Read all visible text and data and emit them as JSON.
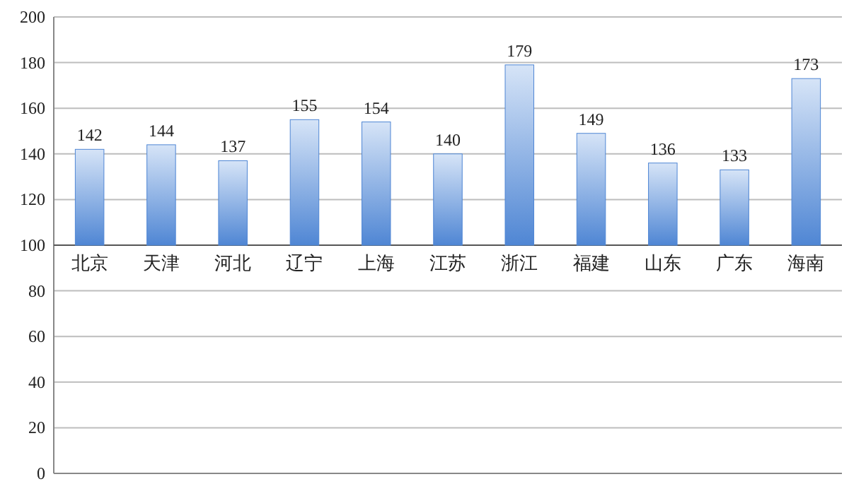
{
  "chart_data": {
    "type": "bar",
    "categories": [
      "北京",
      "天津",
      "河北",
      "辽宁",
      "上海",
      "江苏",
      "浙江",
      "福建",
      "山东",
      "广东",
      "海南"
    ],
    "base": [
      100,
      100,
      100,
      100,
      100,
      100,
      100,
      100,
      100,
      100,
      100
    ],
    "values": [
      42,
      44,
      37,
      55,
      54,
      40,
      79,
      49,
      36,
      33,
      73
    ],
    "value_labels": [
      "142",
      "144",
      "137",
      "155",
      "154",
      "140",
      "179",
      "149",
      "136",
      "133",
      "173"
    ],
    "color": "#4f86d4",
    "ylim": [
      0,
      200
    ],
    "yticks": [
      0,
      20,
      40,
      60,
      80,
      100,
      120,
      140,
      160,
      180,
      200
    ],
    "grid": "y"
  }
}
